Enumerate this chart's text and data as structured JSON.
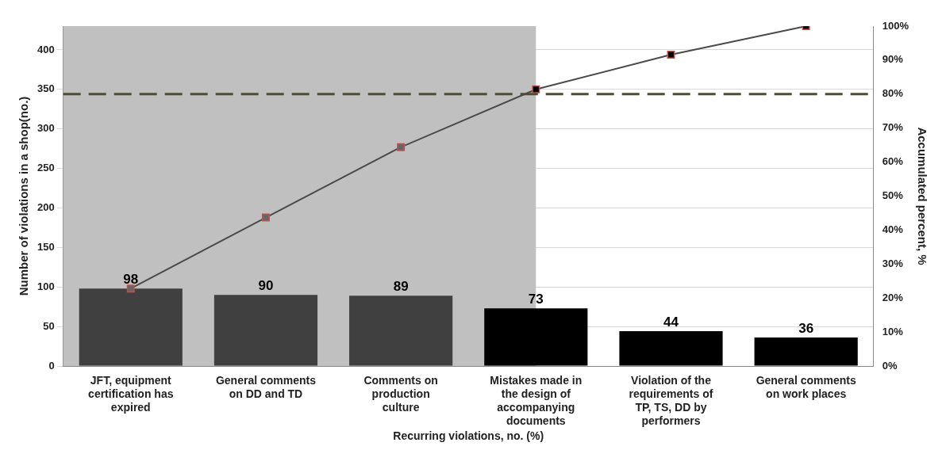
{
  "chart_data": {
    "type": "bar",
    "xlabel": "Recurring violations, no. (%)",
    "ylabel": "Number of violations in a shop(no.)",
    "y2label": "Accumulated percent, %",
    "categories": [
      "JFT, equipment certification has expired",
      "General comments on DD and TD",
      "Comments on production culture",
      "Mistakes made in the design of accompanying documents",
      "Violation of the requirements of TP, TS, DD by performers",
      "General comments on work places"
    ],
    "series": [
      {
        "colors": [
          "#404040",
          "#404040",
          "#404040",
          "#000000",
          "#000000",
          "#000000"
        ],
        "values": [
          98,
          90,
          89,
          73,
          44,
          36
        ],
        "value_labels": [
          "98",
          "90",
          "89",
          "73",
          "44",
          "36"
        ]
      },
      {
        "type": "line",
        "axis": "y2",
        "color": "#4a4a4a",
        "values": [
          22.8,
          43.7,
          64.4,
          81.4,
          91.6,
          100
        ]
      }
    ],
    "ylim": [
      0,
      430
    ],
    "yticks": [
      0,
      50,
      100,
      150,
      200,
      250,
      300,
      350,
      400
    ],
    "y2lim": [
      0,
      100
    ],
    "y2ticks": [
      {
        "value": 0,
        "label": "0%"
      },
      {
        "value": 10,
        "label": "10%"
      },
      {
        "value": 20,
        "label": "20%"
      },
      {
        "value": 30,
        "label": "30%"
      },
      {
        "value": 40,
        "label": "40%"
      },
      {
        "value": 50,
        "label": "50%"
      },
      {
        "value": 60,
        "label": "60%"
      },
      {
        "value": 70,
        "label": "70%"
      },
      {
        "value": 80,
        "label": "80%"
      },
      {
        "value": 90,
        "label": "90%"
      },
      {
        "value": 100,
        "label": "100%"
      }
    ],
    "ref_lines": [
      {
        "axis": "y2",
        "value": 80,
        "color": "#4d4d33",
        "line_style": "dashed"
      }
    ],
    "bands": [
      {
        "axis": "x",
        "from": "JFT, equipment certification has expired",
        "to": "Mistakes made in the design of accompanying documents",
        "color": "#c0c0c0"
      }
    ],
    "grid": "y",
    "legend": false,
    "marker": "square"
  }
}
